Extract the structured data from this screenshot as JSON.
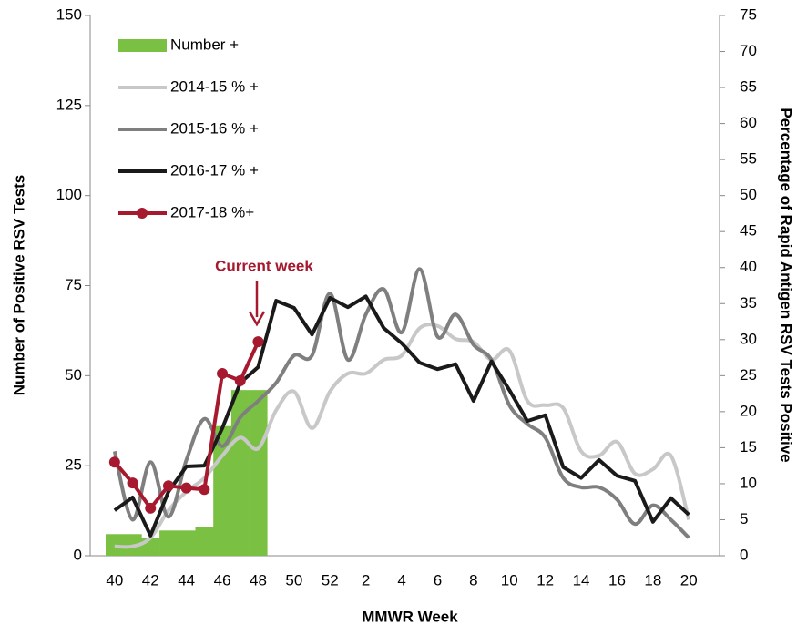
{
  "chart_data": {
    "type": "bar-line",
    "annotation": "Current week",
    "xlabel": "MMWR Week",
    "ylabel": "Number of Positive RSV Tests",
    "y2label": "Percentage of Rapid Antigen RSV Tests Positive",
    "categories": [
      "40",
      null,
      "42",
      null,
      "44",
      null,
      "46",
      null,
      "48",
      null,
      "50",
      null,
      "52",
      null,
      "2",
      null,
      "4",
      null,
      "6",
      null,
      "8",
      null,
      "10",
      null,
      "12",
      null,
      "14",
      null,
      "16",
      null,
      "18",
      null,
      "20"
    ],
    "ylim": [
      0,
      150
    ],
    "yticks": [
      0,
      25,
      50,
      75,
      100,
      125,
      150
    ],
    "y2lim": [
      0,
      75
    ],
    "y2ticks": [
      0,
      5,
      10,
      15,
      20,
      25,
      30,
      35,
      40,
      45,
      50,
      55,
      60,
      65,
      70,
      75
    ],
    "grid": false,
    "legend": "upper left",
    "series": [
      {
        "name": "Number +",
        "type": "bar",
        "color": "#7ac143",
        "values": [
          6,
          6,
          5,
          7,
          7,
          8,
          36,
          46,
          46,
          null,
          null,
          null,
          null,
          null,
          null,
          null,
          null,
          null,
          null,
          null,
          null,
          null,
          null,
          null,
          null,
          null,
          null,
          null,
          null,
          null,
          null,
          null,
          null
        ]
      },
      {
        "name": "2014-15 % +",
        "type": "line",
        "axis": "y2",
        "color": "#c8c8c8",
        "smooth": true,
        "values": [
          1.3,
          1.3,
          2.5,
          6.3,
          8.9,
          10.8,
          13.9,
          16.4,
          14.9,
          20.2,
          22.8,
          17.7,
          22.8,
          25.3,
          25.3,
          27.2,
          27.8,
          31.6,
          31.9,
          30.1,
          29.7,
          27.2,
          28.5,
          21.5,
          20.9,
          20.5,
          14.5,
          13.9,
          15.8,
          11.4,
          12,
          13.9,
          5
        ]
      },
      {
        "name": "2015-16 % +",
        "type": "line",
        "axis": "y2",
        "color": "#7f7f7f",
        "smooth": true,
        "values": [
          14.5,
          5,
          13,
          5.4,
          13.3,
          19,
          15.2,
          19.2,
          21.5,
          24,
          27.8,
          27.8,
          36.4,
          27.2,
          33.5,
          37,
          31,
          39.8,
          30.4,
          33.5,
          29.3,
          27.2,
          20.9,
          18.3,
          16.4,
          10.8,
          9.5,
          9.5,
          7.8,
          4.4,
          7,
          5,
          2.5
        ]
      },
      {
        "name": "2016-17 % +",
        "type": "line",
        "axis": "y2",
        "color": "#1a1a1a",
        "smooth": false,
        "values": [
          6.3,
          8.1,
          2.8,
          8.9,
          12.4,
          12.5,
          17.7,
          24,
          26.2,
          35.4,
          34.4,
          30.7,
          35.8,
          34.5,
          36,
          31.6,
          29.5,
          26.8,
          25.9,
          26.6,
          21.5,
          27,
          23,
          18.7,
          19.5,
          12.3,
          10.8,
          13.3,
          11.1,
          10.4,
          4.7,
          8,
          5.7
        ]
      },
      {
        "name": "2017-18 %+",
        "type": "line",
        "axis": "y2",
        "color": "#a6192e",
        "smooth": false,
        "marker": true,
        "values": [
          13,
          10.1,
          6.6,
          9.7,
          9.4,
          9.2,
          25.3,
          24.3,
          29.7,
          null,
          null,
          null,
          null,
          null,
          null,
          null,
          null,
          null,
          null,
          null,
          null,
          null,
          null,
          null,
          null,
          null,
          null,
          null,
          null,
          null,
          null,
          null,
          null
        ]
      }
    ]
  }
}
